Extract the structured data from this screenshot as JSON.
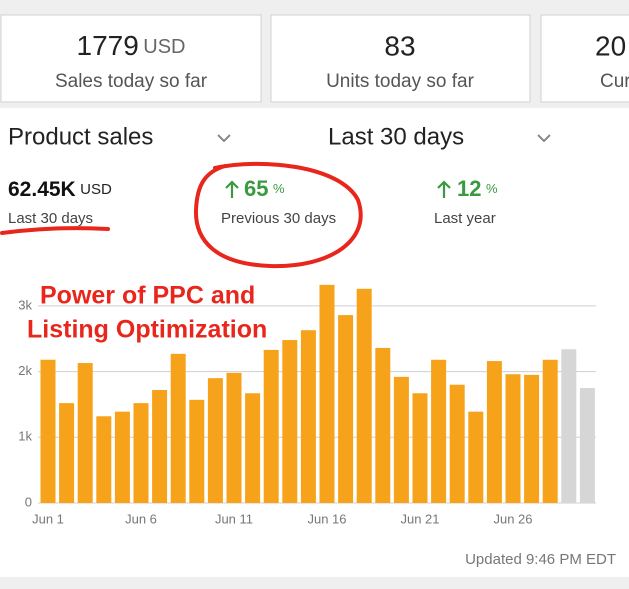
{
  "cards": [
    {
      "value": "1779",
      "unit": "USD",
      "label": "Sales today so far"
    },
    {
      "value": "83",
      "label": "Units today so far"
    },
    {
      "value": "20",
      "label": "Cur"
    }
  ],
  "metric_select": "Product sales",
  "period_select": "Last 30 days",
  "stats": [
    {
      "value": "62.45K",
      "unit": "USD",
      "label": "Last 30 days"
    },
    {
      "value": "65",
      "unit": "%",
      "label": "Previous 30 days"
    },
    {
      "value": "12",
      "unit": "%",
      "label": "Last year"
    }
  ],
  "annotation": [
    "Power of PPC and",
    "Listing Optimization"
  ],
  "chart_data": {
    "type": "bar",
    "categories": [
      "Jun 1",
      null,
      null,
      null,
      null,
      "Jun 6",
      null,
      null,
      null,
      null,
      "Jun 11",
      null,
      null,
      null,
      null,
      "Jun 16",
      null,
      null,
      null,
      null,
      "Jun 21",
      null,
      null,
      null,
      null,
      "Jun 26",
      null,
      null,
      null,
      null
    ],
    "values": [
      2180,
      1520,
      2130,
      1320,
      1390,
      1520,
      1720,
      2270,
      1570,
      1900,
      1980,
      1670,
      2330,
      2480,
      2630,
      3320,
      2860,
      3260,
      2360,
      1920,
      1670,
      2180,
      1800,
      1390,
      2160,
      1960,
      1950,
      2180,
      2340,
      1750
    ],
    "colors": [
      "#f7a21b",
      "#f7a21b",
      "#f7a21b",
      "#f7a21b",
      "#f7a21b",
      "#f7a21b",
      "#f7a21b",
      "#f7a21b",
      "#f7a21b",
      "#f7a21b",
      "#f7a21b",
      "#f7a21b",
      "#f7a21b",
      "#f7a21b",
      "#f7a21b",
      "#f7a21b",
      "#f7a21b",
      "#f7a21b",
      "#f7a21b",
      "#f7a21b",
      "#f7a21b",
      "#f7a21b",
      "#f7a21b",
      "#f7a21b",
      "#f7a21b",
      "#f7a21b",
      "#f7a21b",
      "#f7a21b",
      "#d6d6d6",
      "#d6d6d6"
    ],
    "ylim": [
      0,
      3400
    ],
    "yticks": [
      0,
      {
        "value": 1000,
        "label": "1k"
      },
      {
        "value": 2000,
        "label": "2k"
      },
      {
        "value": 3000,
        "label": "3k"
      }
    ],
    "grid": true
  },
  "footer": "Updated 9:46 PM EDT"
}
